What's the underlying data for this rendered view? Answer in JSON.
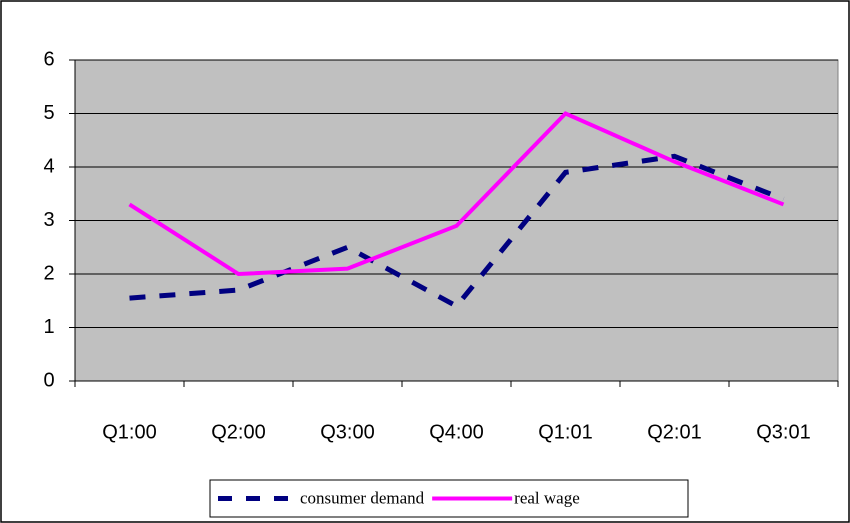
{
  "chart_data": {
    "type": "line",
    "categories": [
      "Q1:00",
      "Q2:00",
      "Q3:00",
      "Q4:00",
      "Q1:01",
      "Q2:01",
      "Q3:01"
    ],
    "series": [
      {
        "name": "consumer demand",
        "color": "#000080",
        "dashed": true,
        "values": [
          1.55,
          1.7,
          2.5,
          1.4,
          3.9,
          4.2,
          3.4
        ]
      },
      {
        "name": "real wage",
        "color": "#ff00ff",
        "dashed": false,
        "values": [
          3.3,
          2.0,
          2.1,
          2.9,
          5.0,
          4.1,
          3.3
        ]
      }
    ],
    "ylim": [
      0,
      6
    ],
    "yticks": [
      0,
      1,
      2,
      3,
      4,
      5,
      6
    ],
    "grid": true,
    "legend": "bottom"
  }
}
